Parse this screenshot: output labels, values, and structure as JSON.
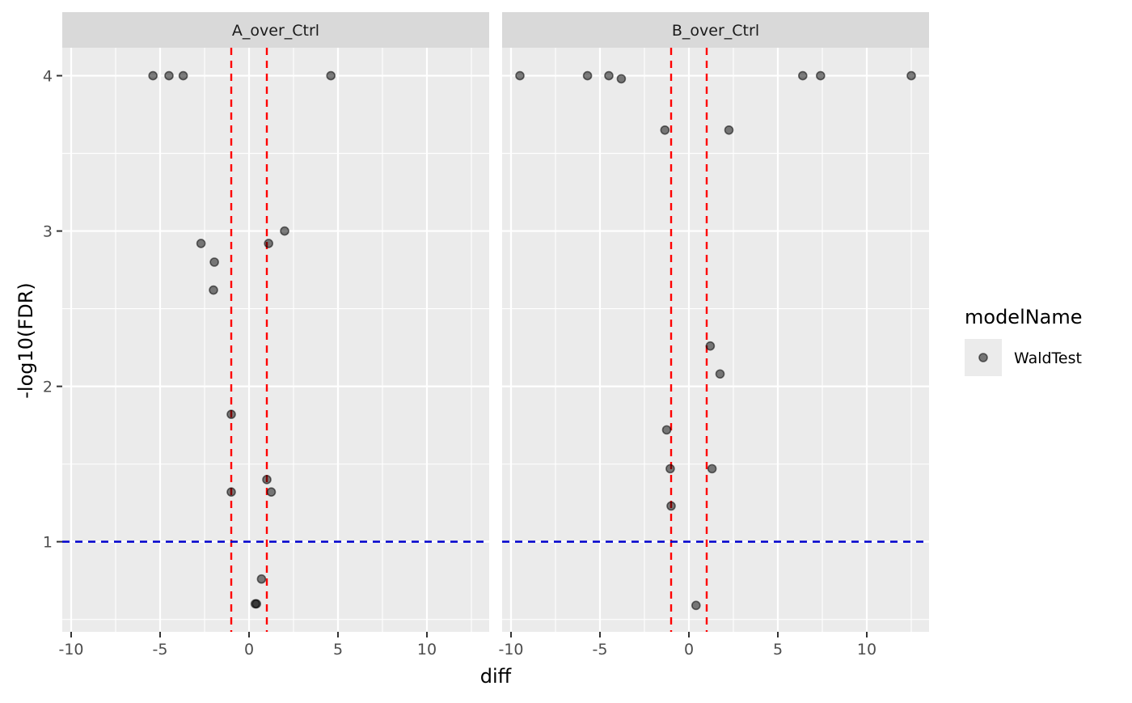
{
  "chart_data": {
    "type": "scatter",
    "xlabel": "diff",
    "ylabel": "-log10(FDR)",
    "xlim": [
      -10.5,
      13.5
    ],
    "ylim": [
      0.42,
      4.18
    ],
    "x_ticks": [
      -10,
      -5,
      0,
      5,
      10
    ],
    "x_tick_labels": [
      "-10",
      "-5",
      "0",
      "5",
      "10"
    ],
    "y_ticks": [
      1,
      2,
      3,
      4
    ],
    "y_tick_labels": [
      "1",
      "2",
      "3",
      "4"
    ],
    "grid": true,
    "vlines": {
      "values": [
        -1,
        1
      ],
      "color": "#FF0000",
      "style": "dashed"
    },
    "hline": {
      "value": 1,
      "color": "#0000CD",
      "style": "dashed"
    },
    "point_color": "#000000",
    "point_alpha": 0.5,
    "legend": {
      "title": "modelName",
      "position": "right",
      "entries": [
        "WaldTest"
      ]
    },
    "facets": [
      {
        "label": "A_over_Ctrl",
        "points": [
          {
            "x": -5.4,
            "y": 4.0
          },
          {
            "x": -4.5,
            "y": 4.0
          },
          {
            "x": -3.7,
            "y": 4.0
          },
          {
            "x": 4.6,
            "y": 4.0
          },
          {
            "x": 2.0,
            "y": 3.0
          },
          {
            "x": -2.7,
            "y": 2.92
          },
          {
            "x": 1.1,
            "y": 2.92
          },
          {
            "x": -1.95,
            "y": 2.8
          },
          {
            "x": -2.0,
            "y": 2.62
          },
          {
            "x": -1.0,
            "y": 1.82
          },
          {
            "x": 1.0,
            "y": 1.4
          },
          {
            "x": 1.25,
            "y": 1.32
          },
          {
            "x": -1.0,
            "y": 1.32
          },
          {
            "x": 0.7,
            "y": 0.76
          },
          {
            "x": 0.35,
            "y": 0.6
          },
          {
            "x": 0.42,
            "y": 0.6
          }
        ]
      },
      {
        "label": "B_over_Ctrl",
        "points": [
          {
            "x": -9.5,
            "y": 4.0
          },
          {
            "x": -5.7,
            "y": 4.0
          },
          {
            "x": -4.5,
            "y": 4.0
          },
          {
            "x": -3.8,
            "y": 3.98
          },
          {
            "x": 6.4,
            "y": 4.0
          },
          {
            "x": 7.4,
            "y": 4.0
          },
          {
            "x": 12.5,
            "y": 4.0
          },
          {
            "x": -1.35,
            "y": 3.65
          },
          {
            "x": 2.25,
            "y": 3.65
          },
          {
            "x": 1.2,
            "y": 2.26
          },
          {
            "x": 1.75,
            "y": 2.08
          },
          {
            "x": -1.25,
            "y": 1.72
          },
          {
            "x": -1.05,
            "y": 1.47
          },
          {
            "x": 1.3,
            "y": 1.47
          },
          {
            "x": -1.0,
            "y": 1.23
          },
          {
            "x": 0.4,
            "y": 0.59
          }
        ]
      }
    ]
  }
}
